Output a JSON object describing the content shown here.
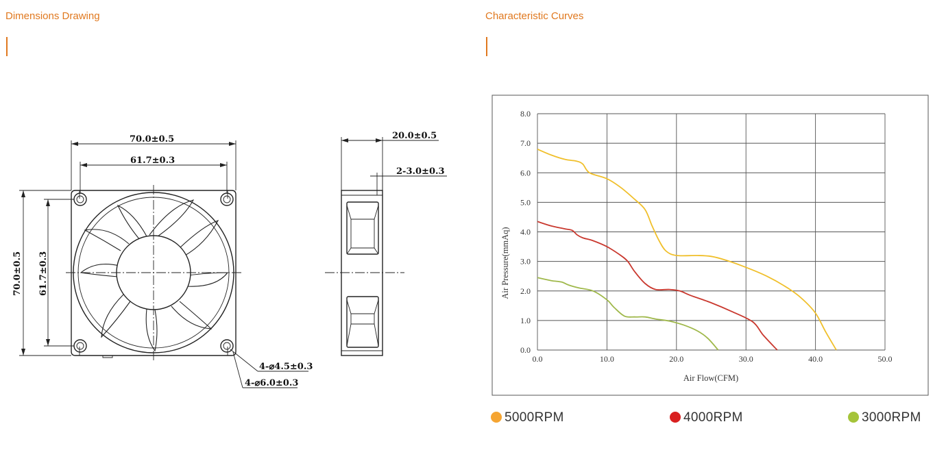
{
  "sections": {
    "dimensions_title": "Dimensions Drawing",
    "curves_title": "Characteristic Curves"
  },
  "dimensions": {
    "overall_width": "70.0±0.5",
    "hole_spacing_h": "61.7±0.3",
    "overall_height": "70.0±0.5",
    "hole_spacing_v": "61.7±0.3",
    "depth": "20.0±0.5",
    "flange": "2-3.0±0.3",
    "hole_small": "4-⌀4.5±0.3",
    "hole_large": "4-⌀6.0±0.3"
  },
  "chart_data": {
    "type": "line",
    "title": "",
    "xlabel": "Air Flow(CFM)",
    "ylabel": "Air Pressure(mmAq)",
    "xlim": [
      0,
      50
    ],
    "ylim": [
      0,
      8
    ],
    "xticks": [
      "0.0",
      "10.0",
      "20.0",
      "30.0",
      "40.0",
      "50.0"
    ],
    "yticks": [
      "0.0",
      "1.0",
      "2.0",
      "3.0",
      "4.0",
      "5.0",
      "6.0",
      "7.0",
      "8.0"
    ],
    "grid": true,
    "legend_position": "bottom",
    "series": [
      {
        "name": "5000RPM",
        "color": "#f0bf2a",
        "legend_color": "#f5a532",
        "x": [
          0,
          2,
          4,
          5.5,
          6.5,
          7.5,
          10,
          12,
          14,
          15.5,
          16.5,
          17.5,
          18.5,
          20,
          23,
          25,
          27,
          30,
          33,
          36,
          38,
          40,
          41.5,
          43
        ],
        "y": [
          6.8,
          6.6,
          6.45,
          6.4,
          6.3,
          6.0,
          5.8,
          5.5,
          5.1,
          4.75,
          4.2,
          3.7,
          3.35,
          3.2,
          3.2,
          3.17,
          3.05,
          2.8,
          2.5,
          2.1,
          1.75,
          1.25,
          0.6,
          0.0
        ]
      },
      {
        "name": "4000RPM",
        "color": "#c9382e",
        "legend_color": "#d92020",
        "x": [
          0,
          2,
          4,
          5,
          5.7,
          6.5,
          8,
          10,
          12,
          13,
          14,
          15.5,
          17,
          19,
          20.5,
          22,
          25,
          28,
          31,
          32.5,
          34.5
        ],
        "y": [
          4.35,
          4.2,
          4.1,
          4.05,
          3.9,
          3.8,
          3.7,
          3.5,
          3.2,
          3.0,
          2.65,
          2.25,
          2.05,
          2.05,
          2.0,
          1.85,
          1.6,
          1.3,
          0.95,
          0.5,
          0.0
        ]
      },
      {
        "name": "3000RPM",
        "color": "#9fb84a",
        "legend_color": "#a5c43a",
        "x": [
          0,
          2,
          3.5,
          4.5,
          6,
          8,
          10,
          11,
          12.5,
          14,
          15.5,
          17,
          19,
          21,
          23,
          24.5,
          26
        ],
        "y": [
          2.45,
          2.35,
          2.3,
          2.2,
          2.1,
          2.0,
          1.7,
          1.45,
          1.15,
          1.12,
          1.12,
          1.05,
          0.98,
          0.85,
          0.65,
          0.4,
          0.0
        ]
      }
    ]
  }
}
